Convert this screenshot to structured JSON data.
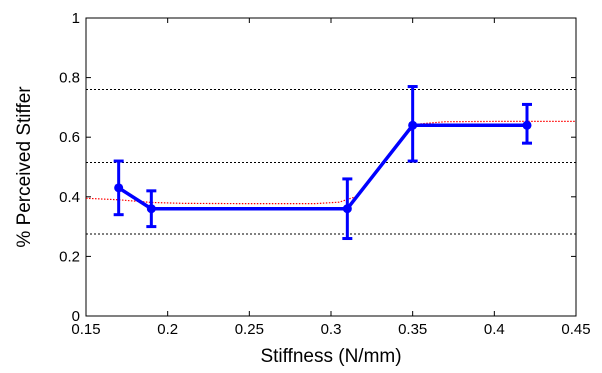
{
  "chart_data": {
    "type": "line",
    "title": "",
    "xlabel": "Stiffness (N/mm)",
    "ylabel": "% Perceived Stiffer",
    "xlim": [
      0.15,
      0.45
    ],
    "ylim": [
      0,
      1
    ],
    "xticks": [
      0.15,
      0.2,
      0.25,
      0.3,
      0.35,
      0.4,
      0.45
    ],
    "yticks": [
      0,
      0.2,
      0.4,
      0.6,
      0.8,
      1
    ],
    "xtick_labels": [
      "0.15",
      "0.2",
      "0.25",
      "0.3",
      "0.35",
      "0.4",
      "0.45"
    ],
    "ytick_labels": [
      "0",
      "0.2",
      "0.4",
      "0.6",
      "0.8",
      "1"
    ],
    "grid": false,
    "series": [
      {
        "style": "solid-markers-errorbars",
        "color": "#0000ff",
        "x": [
          0.17,
          0.19,
          0.31,
          0.35,
          0.42
        ],
        "y": [
          0.43,
          0.36,
          0.36,
          0.64,
          0.64
        ],
        "err_low": [
          0.34,
          0.3,
          0.26,
          0.52,
          0.58
        ],
        "err_high": [
          0.52,
          0.42,
          0.46,
          0.77,
          0.71
        ]
      },
      {
        "style": "dotted-fit",
        "color": "#ff0000",
        "x": [
          0.15,
          0.17,
          0.19,
          0.21,
          0.25,
          0.29,
          0.305,
          0.315,
          0.325,
          0.335,
          0.345,
          0.355,
          0.37,
          0.4,
          0.45
        ],
        "y": [
          0.395,
          0.39,
          0.381,
          0.378,
          0.377,
          0.377,
          0.382,
          0.4,
          0.46,
          0.54,
          0.61,
          0.645,
          0.652,
          0.653,
          0.653
        ]
      }
    ],
    "reference_lines": [
      {
        "y": 0.76,
        "color": "#000000",
        "style": "dotted"
      },
      {
        "y": 0.515,
        "color": "#000000",
        "style": "dotted"
      },
      {
        "y": 0.275,
        "color": "#000000",
        "style": "dotted"
      }
    ]
  }
}
